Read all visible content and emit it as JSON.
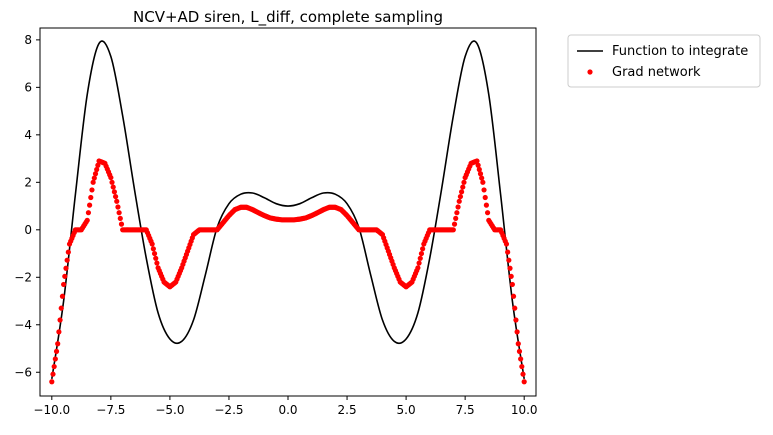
{
  "chart_data": {
    "type": "line",
    "title": "NCV+AD siren, L_diff, complete sampling",
    "xlabel": "",
    "ylabel": "",
    "xlim": [
      -10.5,
      10.5
    ],
    "ylim": [
      -7.0,
      8.5
    ],
    "grid": false,
    "legend_placement": "outside-top-right",
    "x_ticks": [
      -10.0,
      -7.5,
      -5.0,
      -2.5,
      0.0,
      2.5,
      5.0,
      7.5,
      10.0
    ],
    "x_tick_labels": [
      "−10.0",
      "−7.5",
      "−5.0",
      "−2.5",
      "0.0",
      "2.5",
      "5.0",
      "7.5",
      "10.0"
    ],
    "y_ticks": [
      -6,
      -4,
      -2,
      0,
      2,
      4,
      6,
      8
    ],
    "y_tick_labels": [
      "−6",
      "−4",
      "−2",
      "0",
      "2",
      "4",
      "6",
      "8"
    ],
    "series": [
      {
        "name": "Function to integrate",
        "style": "line",
        "color": "#000000",
        "x": [
          -10,
          -9.5,
          -9,
          -8.5,
          -8,
          -7.5,
          -7,
          -6.5,
          -6,
          -5.5,
          -5,
          -4.5,
          -4,
          -3.5,
          -3,
          -2.5,
          -2,
          -1.5,
          -1,
          -0.5,
          0,
          0.5,
          1,
          1.5,
          2,
          2.5,
          3,
          3.5,
          4,
          4.5,
          5,
          5.5,
          6,
          6.5,
          7,
          7.5,
          8,
          8.5,
          9,
          9.5,
          10
        ],
        "y": [
          -6.28,
          -3.0,
          1.5,
          5.7,
          7.85,
          7.3,
          4.8,
          1.7,
          -1.2,
          -3.5,
          -4.6,
          -4.7,
          -3.8,
          -1.9,
          0.1,
          1.1,
          1.5,
          1.55,
          1.35,
          1.1,
          1.0,
          1.1,
          1.35,
          1.55,
          1.5,
          1.1,
          0.1,
          -1.9,
          -3.8,
          -4.7,
          -4.6,
          -3.5,
          -1.2,
          1.7,
          4.8,
          7.3,
          7.85,
          5.7,
          1.5,
          -3.0,
          -6.28
        ]
      },
      {
        "name": "Grad network",
        "style": "points",
        "color": "#ff0000",
        "x": [
          -10,
          -9.75,
          -9.5,
          -9.25,
          -9,
          -8.75,
          -8.5,
          -8.25,
          -8,
          -7.75,
          -7.5,
          -7.25,
          -7,
          -6.75,
          -6.5,
          -6.25,
          -6,
          -5.75,
          -5.5,
          -5.25,
          -5,
          -4.75,
          -4.5,
          -4.25,
          -4,
          -3.75,
          -3.5,
          -3.25,
          -3,
          -2.75,
          -2.5,
          -2.25,
          -2,
          -1.75,
          -1.5,
          -1.25,
          -1,
          -0.75,
          -0.5,
          -0.25,
          0,
          0.25,
          0.5,
          0.75,
          1,
          1.25,
          1.5,
          1.75,
          2,
          2.25,
          2.5,
          2.75,
          3,
          3.25,
          3.5,
          3.75,
          4,
          4.25,
          4.5,
          4.75,
          5,
          5.25,
          5.5,
          5.75,
          6,
          6.25,
          6.5,
          6.75,
          7,
          7.25,
          7.5,
          7.75,
          8,
          8.25,
          8.5,
          8.75,
          9,
          9.25,
          9.5,
          9.75,
          10
        ],
        "y": [
          -6.4,
          -4.8,
          -2.3,
          -0.6,
          0.0,
          0.0,
          0.4,
          2.0,
          2.9,
          2.8,
          2.2,
          1.2,
          0.0,
          0.0,
          0.0,
          0.0,
          0.0,
          -0.6,
          -1.6,
          -2.2,
          -2.4,
          -2.2,
          -1.6,
          -0.9,
          -0.2,
          0.0,
          0.0,
          0.0,
          0.0,
          0.3,
          0.6,
          0.85,
          0.95,
          0.95,
          0.85,
          0.72,
          0.6,
          0.5,
          0.45,
          0.42,
          0.42,
          0.42,
          0.45,
          0.5,
          0.6,
          0.72,
          0.85,
          0.95,
          0.95,
          0.85,
          0.6,
          0.3,
          0.0,
          0.0,
          0.0,
          0.0,
          -0.2,
          -0.9,
          -1.6,
          -2.2,
          -2.4,
          -2.2,
          -1.6,
          -0.6,
          0.0,
          0.0,
          0.0,
          0.0,
          0.0,
          1.2,
          2.2,
          2.8,
          2.9,
          2.0,
          0.4,
          0.0,
          0.0,
          -0.6,
          -2.3,
          -4.8,
          -6.4
        ]
      }
    ]
  }
}
